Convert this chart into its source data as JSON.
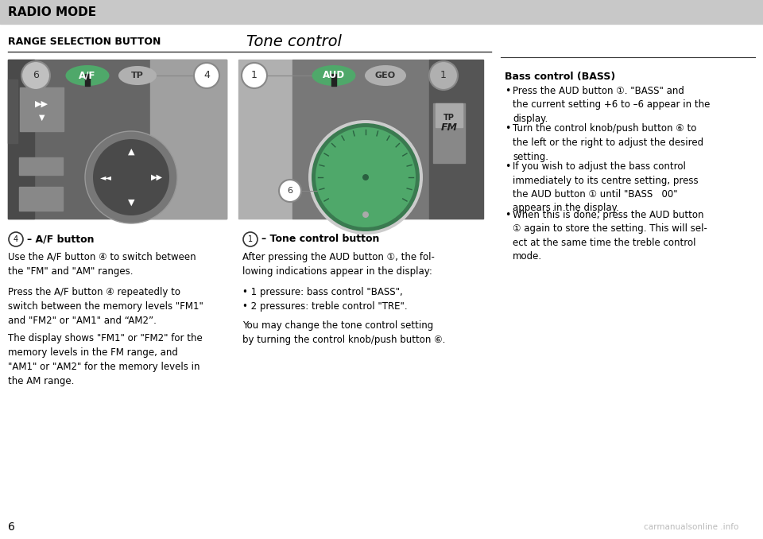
{
  "header_bg": "#c8c8c8",
  "header_text": "RADIO MODE",
  "header_text_color": "#000000",
  "page_bg": "#ffffff",
  "left_section_title": "RANGE SELECTION BUTTON",
  "right_section_title": "Tone control",
  "page_number": "6",
  "watermark": "carmanualsonline .info",
  "img1_bg_dark": "#5a5a5a",
  "img1_bg_light": "#9a9a9a",
  "img2_bg_left_light": "#aaaaaa",
  "img2_bg_mid": "#757575",
  "img2_bg_right": "#606060",
  "green_color": "#4fa86a",
  "green_dark": "#357a4a",
  "btn_gray_face": "#c5c5c5",
  "btn_gray_edge": "#888888",
  "nav_ring_color": "#888888",
  "nav_bg": "#3a3a3a",
  "right_col_title": "Bass control (BASS)",
  "right_col_bullets": [
    "Press the AUD button ①. \"BASS\" and\nthe current setting +6 to –6 appear in the\ndisplay.",
    "Turn the control knob/push button ⑥ to\nthe left or the right to adjust the desired\nsetting.",
    "If you wish to adjust the bass control\nimmediately to its centre setting, press\nthe AUD button ① until \"BASS   00\"\nappears in the display.",
    "When this is done, press the AUD button\n① again to store the setting. This will sel-\nect at the same time the treble control\nmode."
  ]
}
